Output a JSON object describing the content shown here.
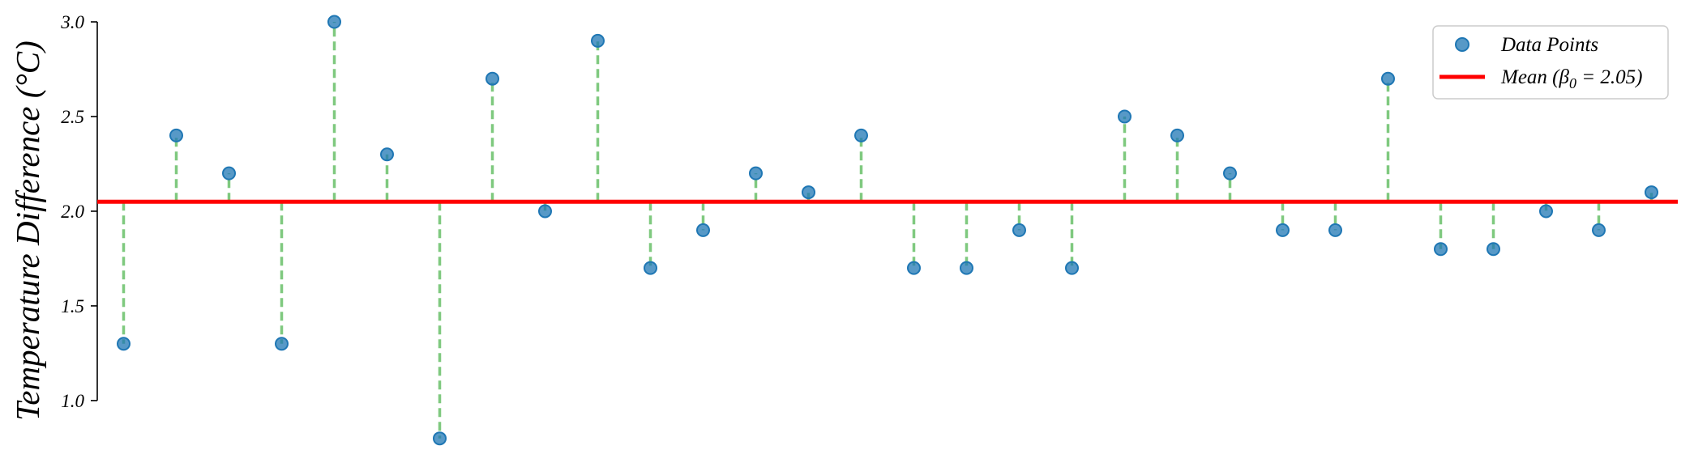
{
  "chart_data": {
    "type": "scatter",
    "ylabel": "Temperature Difference (°C)",
    "xlabel": "",
    "title": "",
    "ylim": [
      0.85,
      3.03
    ],
    "xlim": [
      -0.5,
      29.5
    ],
    "yticks": [
      1.0,
      1.5,
      2.0,
      2.5,
      3.0
    ],
    "ytick_labels": [
      "1.0",
      "1.5",
      "2.0",
      "2.5",
      "3.0"
    ],
    "grid": false,
    "legend_position": "top-right",
    "mean": 2.05,
    "series": [
      {
        "name": "Data Points",
        "kind": "points",
        "color": "#1f77b4",
        "x": [
          0,
          1,
          2,
          3,
          4,
          5,
          6,
          7,
          8,
          9,
          10,
          11,
          12,
          13,
          14,
          15,
          16,
          17,
          18,
          19,
          20,
          21,
          22,
          23,
          24,
          25,
          26,
          27,
          28,
          29
        ],
        "y": [
          1.3,
          2.4,
          2.2,
          1.3,
          3.0,
          2.3,
          0.8,
          2.7,
          2.0,
          2.9,
          1.7,
          1.9,
          2.2,
          2.1,
          2.4,
          1.7,
          1.7,
          1.9,
          1.7,
          2.5,
          2.4,
          2.2,
          1.9,
          1.9,
          2.7,
          1.8,
          1.8,
          2.0,
          1.9,
          2.1
        ]
      },
      {
        "name": "Mean (β₀ = 2.05)",
        "kind": "hline",
        "color": "#ff0000",
        "y": 2.05
      }
    ],
    "residual_color": "#7fc97f",
    "legend": {
      "points_label": "Data Points",
      "mean_prefix": "Mean (",
      "mean_beta": "β",
      "mean_sub": "0",
      "mean_suffix": " = 2.05)"
    }
  }
}
